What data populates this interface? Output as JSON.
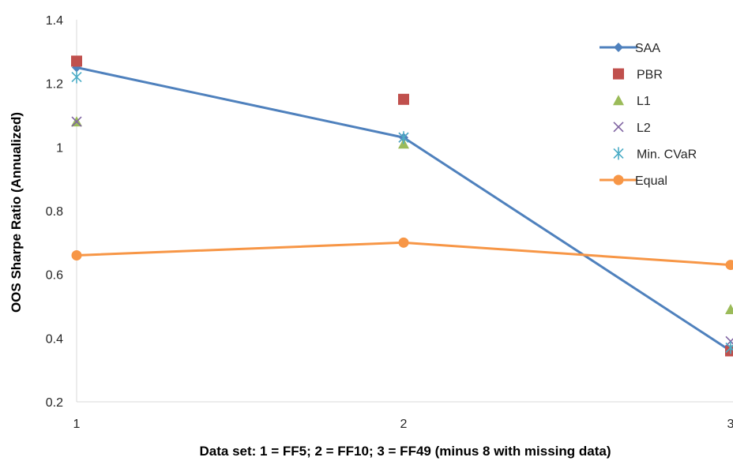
{
  "chart_data": {
    "type": "line",
    "title": "",
    "xlabel": "Data set: 1 = FF5; 2 = FF10; 3 = FF49 (minus 8 with missing data)",
    "ylabel": "OOS  Sharpe Ratio (Annualized)",
    "x": [
      1,
      2,
      3
    ],
    "x_tick_labels": [
      "1",
      "2",
      "3"
    ],
    "ylim": [
      0.2,
      1.4
    ],
    "y_ticks": [
      0.2,
      0.4,
      0.6,
      0.8,
      1.0,
      1.2,
      1.4
    ],
    "y_tick_labels": [
      "0.2",
      "0.4",
      "0.6",
      "0.8",
      "1",
      "1.2",
      "1.4"
    ],
    "grid": false,
    "legend_position": "top-right",
    "series": [
      {
        "name": "SAA",
        "values": [
          1.25,
          1.03,
          0.36
        ],
        "marker": "diamond",
        "line": true,
        "color": "#4F81BD"
      },
      {
        "name": "PBR",
        "values": [
          1.27,
          1.15,
          0.36
        ],
        "marker": "square",
        "line": false,
        "color": "#C0504D"
      },
      {
        "name": "L1",
        "values": [
          1.08,
          1.01,
          0.49
        ],
        "marker": "triangle",
        "line": false,
        "color": "#9BBB59"
      },
      {
        "name": "L2",
        "values": [
          1.08,
          1.03,
          0.39
        ],
        "marker": "x",
        "line": false,
        "color": "#8064A2"
      },
      {
        "name": "Min. CVaR",
        "values": [
          1.22,
          1.03,
          0.37
        ],
        "marker": "star",
        "line": false,
        "color": "#4BACC6"
      },
      {
        "name": "Equal",
        "values": [
          0.66,
          0.7,
          0.63
        ],
        "marker": "circle",
        "line": true,
        "color": "#F79646"
      }
    ]
  }
}
